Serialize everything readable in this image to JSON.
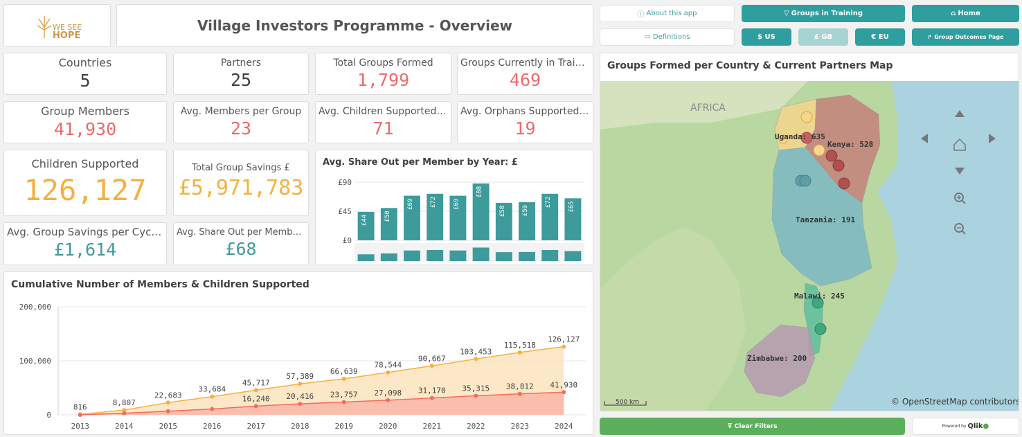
{
  "logo": {
    "line1": "WE SEE",
    "line2": "HOPE"
  },
  "header": {
    "title": "Village Investors Programme - Overview"
  },
  "buttons": {
    "about": "About this app",
    "definitions": "Definitions",
    "groups_in_training": "Groups in Training",
    "home": "Home",
    "usd": "$ US",
    "gbp": "£ GB",
    "eur": "€ EU",
    "group_outcomes": "Group Outcomes Page",
    "clear_filters": "Clear Filters",
    "powered_by": "Powered by",
    "qlik": "Qlik"
  },
  "kpis": {
    "countries": {
      "label": "Countries",
      "value": "5"
    },
    "partners": {
      "label": "Partners",
      "value": "25"
    },
    "total_groups": {
      "label": "Total Groups Formed",
      "value": "1,799"
    },
    "groups_training": {
      "label": "Groups Currently in Training",
      "value": "469"
    },
    "group_members": {
      "label": "Group Members",
      "value": "41,930"
    },
    "avg_members": {
      "label": "Avg. Members per Group",
      "value": "23"
    },
    "avg_children": {
      "label": "Avg. Children Supported per G...",
      "value": "71"
    },
    "avg_orphans": {
      "label": "Avg. Orphans Supported per ...",
      "value": "19"
    },
    "children_supported": {
      "label": "Children Supported",
      "value": "126,127"
    },
    "total_savings": {
      "label": "Total Group Savings £",
      "value": "£5,971,783"
    },
    "avg_savings_cycle": {
      "label": "Avg. Group Savings per Cycle £",
      "value": "£1,614"
    },
    "avg_share_out": {
      "label": "Avg. Share Out per Member £",
      "value": "£68"
    }
  },
  "map": {
    "title": "Groups Formed per Country & Current Partners Map",
    "region_label": "AFRICA",
    "countries": [
      {
        "name": "Uganda: 635",
        "color": "#f6d58c"
      },
      {
        "name": "Kenya: 528",
        "color": "#c47d79"
      },
      {
        "name": "Tanzania: 191",
        "color": "#7cb9c4"
      },
      {
        "name": "Malawi: 245",
        "color": "#63c09d"
      },
      {
        "name": "Zimbabwe: 200",
        "color": "#b79ab1"
      }
    ],
    "scale": "500 km",
    "attribution": "© OpenStreetMap contributors"
  },
  "chart_data": [
    {
      "type": "bar",
      "title": "Avg. Share Out per Member by Year: £",
      "values": [
        44,
        50,
        69,
        72,
        69,
        88,
        58,
        59,
        72,
        65
      ],
      "labels": [
        "£44",
        "£50",
        "£69",
        "£72",
        "£69",
        "£88",
        "£58",
        "£59",
        "£72",
        "£65"
      ],
      "yticks": [
        "£90",
        "£45",
        "£0"
      ],
      "ylim": [
        0,
        90
      ],
      "color": "#3e9b9b"
    },
    {
      "type": "area",
      "title": "Cumulative Number of Members & Children Supported",
      "x": [
        "2013",
        "2014",
        "2015",
        "2016",
        "2017",
        "2018",
        "2019",
        "2020",
        "2021",
        "2022",
        "2023",
        "2024"
      ],
      "yticks": [
        "200,000",
        "100,000",
        "0"
      ],
      "ylim": [
        0,
        200000
      ],
      "series": [
        {
          "color": "#f5b041",
          "values": [
            816,
            8807,
            22683,
            33684,
            45717,
            57389,
            66639,
            78544,
            90667,
            103453,
            115518,
            126127
          ],
          "labels": [
            "816",
            "8,807",
            "22,683",
            "33,684",
            "45,717",
            "57,389",
            "66,639",
            "78,544",
            "90,667",
            "103,453",
            "115,518",
            "126,127"
          ]
        },
        {
          "color": "#f26d5b",
          "values": [
            0,
            3000,
            6800,
            10800,
            16240,
            20416,
            23757,
            27098,
            31170,
            35315,
            38812,
            41930
          ],
          "labels": [
            "",
            "",
            "",
            "",
            "16,240",
            "20,416",
            "23,757",
            "27,098",
            "31,170",
            "35,315",
            "38,812",
            "41,930"
          ]
        }
      ]
    }
  ]
}
